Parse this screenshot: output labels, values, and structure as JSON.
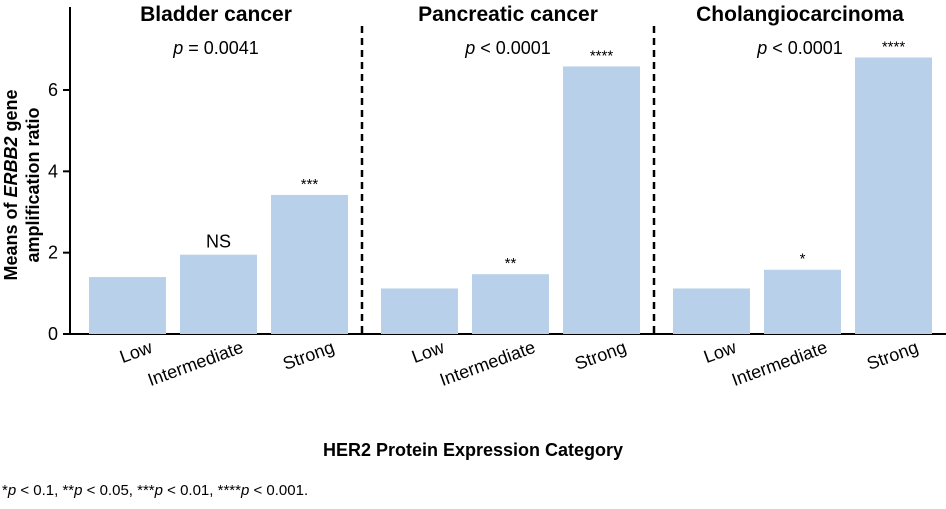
{
  "chart_data": {
    "type": "bar",
    "ylabel_parts": [
      "Means of ",
      "ERBB2",
      " gene",
      "amplification ratio"
    ],
    "xlabel": "HER2 Protein Expression Category",
    "ylim": [
      0,
      7
    ],
    "yticks": [
      0,
      2,
      4,
      6
    ],
    "categories": [
      "Low",
      "Intermediate",
      "Strong"
    ],
    "bar_color": "#b9d0ea",
    "panels": [
      {
        "title": "Bladder cancer",
        "p_symbol": "p",
        "p_text": " = 0.0041",
        "values": [
          1.4,
          1.95,
          3.42
        ],
        "significance": [
          "",
          "NS",
          "***"
        ]
      },
      {
        "title": "Pancreatic cancer",
        "p_symbol": "p",
        "p_text": " < 0.0001",
        "values": [
          1.12,
          1.47,
          6.58
        ],
        "significance": [
          "",
          "**",
          "****"
        ]
      },
      {
        "title": "Cholangiocarcinoma",
        "p_symbol": "p",
        "p_text": " < 0.0001",
        "values": [
          1.12,
          1.58,
          6.8
        ],
        "significance": [
          "",
          "*",
          "****"
        ]
      }
    ]
  },
  "footnote": [
    {
      "t": "*"
    },
    {
      "t": "p",
      "i": true
    },
    {
      "t": " < 0.1, **"
    },
    {
      "t": "p",
      "i": true
    },
    {
      "t": " < 0.05, ***"
    },
    {
      "t": "p",
      "i": true
    },
    {
      "t": " < 0.01, ****"
    },
    {
      "t": "p",
      "i": true
    },
    {
      "t": " < 0.001."
    }
  ]
}
